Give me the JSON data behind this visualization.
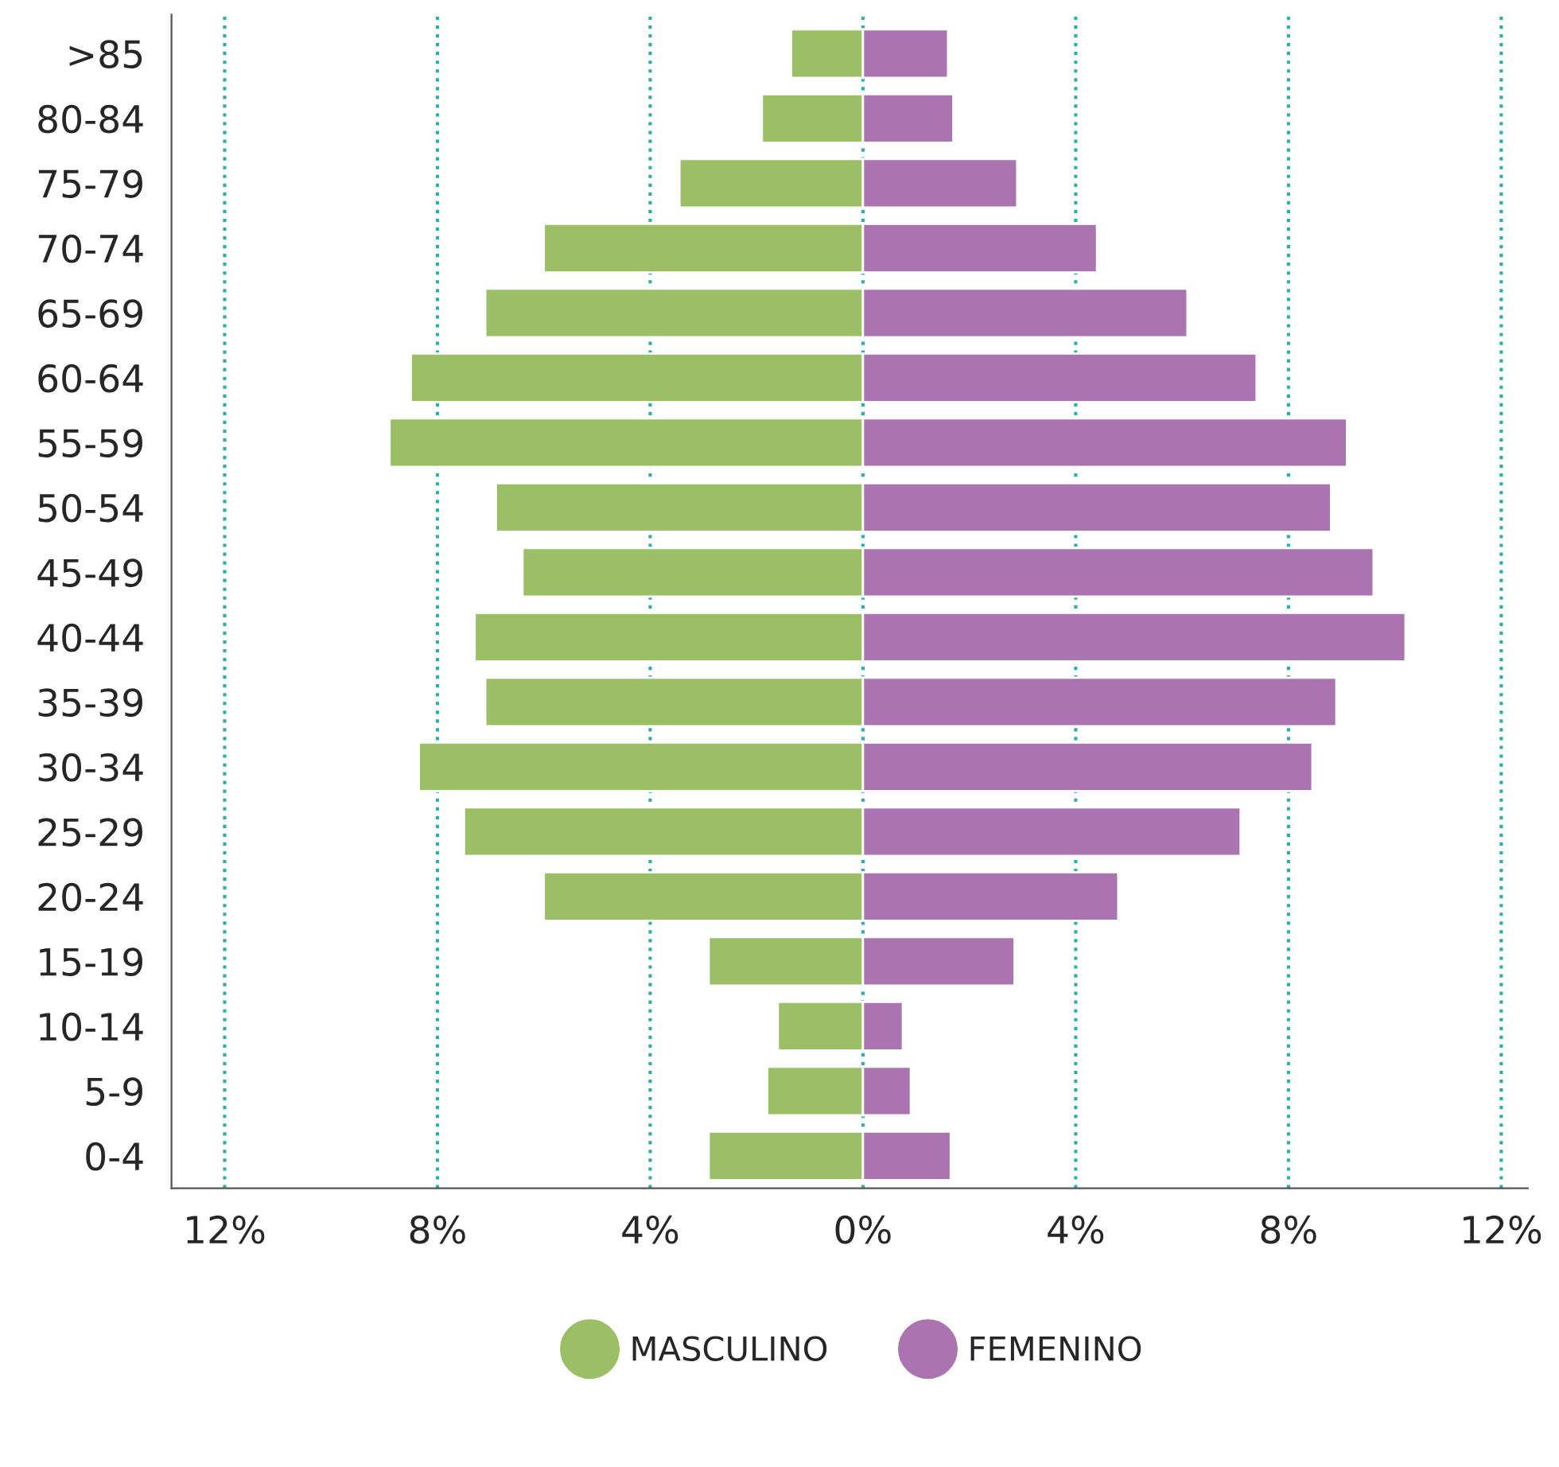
{
  "chart_data": {
    "type": "bar",
    "orientation": "horizontal",
    "stacked": true,
    "categories": [
      ">85",
      "80-84",
      "75-79",
      "70-74",
      "65-69",
      "60-64",
      "55-59",
      "50-54",
      "45-49",
      "40-44",
      "35-39",
      "30-34",
      "25-29",
      "20-24",
      "15-19",
      "10-14",
      "5-9",
      "0-4"
    ],
    "series": [
      {
        "name": "MASCULINO",
        "color": "#9bbf65",
        "values": [
          -1.35,
          -1.9,
          -3.45,
          -6.0,
          -7.1,
          -8.5,
          -8.9,
          -6.9,
          -6.4,
          -7.3,
          -7.1,
          -8.35,
          -7.5,
          -6.0,
          -2.9,
          -1.6,
          -1.8,
          -2.9
        ]
      },
      {
        "name": "FEMENINO",
        "color": "#a974b0",
        "values": [
          1.6,
          1.7,
          2.9,
          4.4,
          6.1,
          7.4,
          9.1,
          8.8,
          9.6,
          10.2,
          8.9,
          8.45,
          7.1,
          4.8,
          2.85,
          0.75,
          0.9,
          1.65
        ]
      }
    ],
    "xlim": [
      -13,
      12.5
    ],
    "xticks": [
      {
        "value": -12,
        "label": "12%"
      },
      {
        "value": -8,
        "label": "8%"
      },
      {
        "value": -4,
        "label": "4%"
      },
      {
        "value": 0,
        "label": "0%"
      },
      {
        "value": 4,
        "label": "4%"
      },
      {
        "value": 8,
        "label": "8%"
      },
      {
        "value": 12,
        "label": "12%"
      }
    ],
    "grid": "x",
    "legend": "bottom",
    "marker": "circle"
  }
}
